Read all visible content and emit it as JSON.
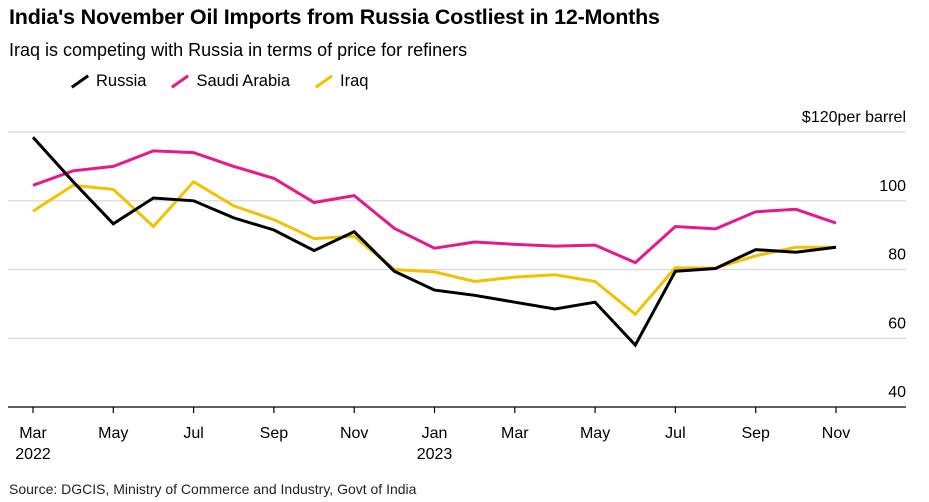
{
  "chart_data": {
    "type": "line",
    "title": "India's November Oil Imports from Russia Costliest in 12-Months",
    "subtitle": "Iraq is competing with Russia in terms of price for refiners",
    "unit_label": "$120per barrel",
    "ylim": [
      40,
      120
    ],
    "y_ticks": [
      {
        "value": 120,
        "label": "$120per barrel"
      },
      {
        "value": 100,
        "label": "100"
      },
      {
        "value": 80,
        "label": "80"
      },
      {
        "value": 60,
        "label": "60"
      },
      {
        "value": 40,
        "label": "40"
      }
    ],
    "x_months": [
      "2022-03",
      "2022-04",
      "2022-05",
      "2022-06",
      "2022-07",
      "2022-08",
      "2022-09",
      "2022-10",
      "2022-11",
      "2022-12",
      "2023-01",
      "2023-02",
      "2023-03",
      "2023-04",
      "2023-05",
      "2023-06",
      "2023-07",
      "2023-08",
      "2023-09",
      "2023-10",
      "2023-11"
    ],
    "x_tick_labels": [
      {
        "index": 0,
        "line1": "Mar",
        "line2": "2022"
      },
      {
        "index": 2,
        "line1": "May",
        "line2": ""
      },
      {
        "index": 4,
        "line1": "Jul",
        "line2": ""
      },
      {
        "index": 6,
        "line1": "Sep",
        "line2": ""
      },
      {
        "index": 8,
        "line1": "Nov",
        "line2": ""
      },
      {
        "index": 10,
        "line1": "Jan",
        "line2": "2023"
      },
      {
        "index": 12,
        "line1": "Mar",
        "line2": ""
      },
      {
        "index": 14,
        "line1": "May",
        "line2": ""
      },
      {
        "index": 16,
        "line1": "Jul",
        "line2": ""
      },
      {
        "index": 18,
        "line1": "Sep",
        "line2": ""
      },
      {
        "index": 20,
        "line1": "Nov",
        "line2": ""
      }
    ],
    "series": [
      {
        "name": "Russia",
        "color": "#000000",
        "values": [
          118.5,
          105.5,
          93.3,
          100.8,
          100,
          95,
          91.5,
          85.5,
          91,
          79.5,
          74,
          72.5,
          70.5,
          68.5,
          70.5,
          58,
          79.5,
          80.3,
          85.8,
          85,
          86.5
        ]
      },
      {
        "name": "Saudi Arabia",
        "color": "#e6198c",
        "values": [
          104.5,
          108.7,
          110,
          114.5,
          114,
          110,
          106.5,
          99.5,
          101.5,
          92,
          86.2,
          88,
          87.3,
          86.8,
          87.1,
          82,
          92.5,
          91.8,
          96.8,
          97.5,
          93.5
        ]
      },
      {
        "name": "Iraq",
        "color": "#f2c200",
        "values": [
          97,
          104.5,
          103.3,
          92.5,
          105.5,
          98.5,
          94.5,
          89,
          89.7,
          80,
          79.3,
          76.5,
          77.8,
          78.5,
          76.5,
          67,
          80.5,
          80.4,
          84,
          86.5,
          86.5
        ]
      }
    ]
  },
  "source": "Source: DGCIS, Ministry of Commerce and Industry, Govt of India"
}
